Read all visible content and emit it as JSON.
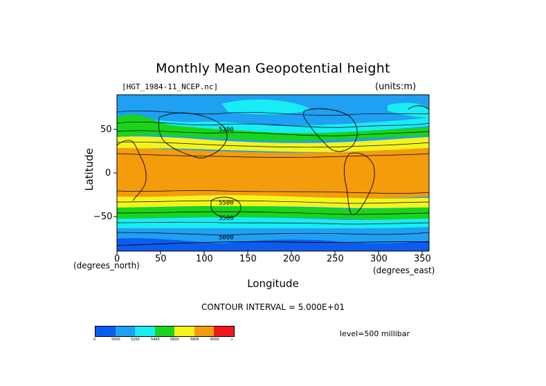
{
  "title": "Monthly Mean Geopotential height",
  "file_label": "[HGT_1984-11_NCEP.nc]",
  "units_label": "(units:m)",
  "x_axis": {
    "label": "Longitude",
    "units": "(degrees_east)",
    "ticks": [
      "0",
      "50",
      "100",
      "150",
      "200",
      "250",
      "300",
      "350"
    ]
  },
  "y_axis": {
    "label": "Latitude",
    "units": "(degrees_north)",
    "ticks": [
      "50",
      "0",
      "−50"
    ]
  },
  "contour_interval": "CONTOUR INTERVAL = 5.000E+01",
  "level": "level=500 millibar",
  "contour_labels": [
    "5300",
    "5500",
    "5500",
    "5000"
  ],
  "colorbar": {
    "labels": [
      "0",
      "5000",
      "5200",
      "5400",
      "5600",
      "5800",
      "6000",
      "∞"
    ],
    "colors": [
      "#0c5cf0",
      "#1fa0f2",
      "#18ecf4",
      "#19d41b",
      "#f4f41c",
      "#f49c0c",
      "#f0181a"
    ]
  },
  "map": {
    "projection": "equirectangular",
    "lon_range": [
      0,
      360
    ],
    "lat_range": [
      -90,
      90
    ],
    "variable": "geopotential height",
    "level_mb": 500,
    "colors": {
      "band_below_5000": "#0c5cf0",
      "band_5000_5200": "#1fa0f2",
      "band_5200_5400": "#18ecf4",
      "band_5400_5600": "#19d41b",
      "band_5600_5800": "#f4f41c",
      "band_5800_6000": "#f49c0c",
      "coastline": "#000000"
    }
  }
}
